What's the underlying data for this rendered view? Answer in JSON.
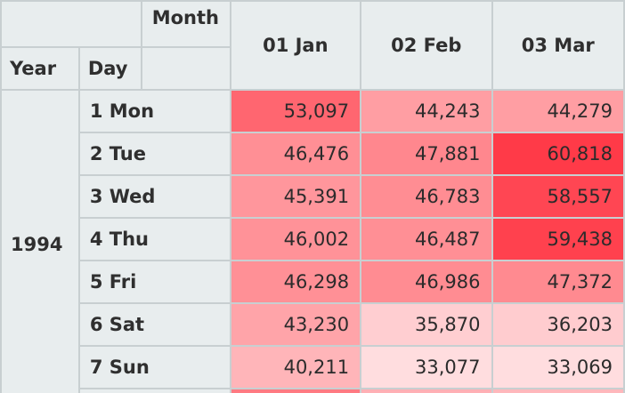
{
  "header": {
    "month_label": "Month",
    "year_label": "Year",
    "day_label": "Day",
    "columns": [
      "01 Jan",
      "02 Feb",
      "03 Mar"
    ]
  },
  "year": "1994",
  "rows": [
    {
      "day": "1 Mon",
      "values": [
        "53,097",
        "44,243",
        "44,279"
      ],
      "colors": [
        "#ff6670",
        "#ff9ea3",
        "#ff9ea3"
      ]
    },
    {
      "day": "2 Tue",
      "values": [
        "46,476",
        "47,881",
        "60,818"
      ],
      "colors": [
        "#ff8f95",
        "#ff878e",
        "#ff3a48"
      ]
    },
    {
      "day": "3 Wed",
      "values": [
        "45,391",
        "46,783",
        "58,557"
      ],
      "colors": [
        "#ff969c",
        "#ff8d93",
        "#ff4653"
      ]
    },
    {
      "day": "4 Thu",
      "values": [
        "46,002",
        "46,487",
        "59,438"
      ],
      "colors": [
        "#ff9298",
        "#ff8f95",
        "#ff414e"
      ]
    },
    {
      "day": "5 Fri",
      "values": [
        "46,298",
        "46,986",
        "47,372"
      ],
      "colors": [
        "#ff9096",
        "#ff8c92",
        "#ff8a90"
      ]
    },
    {
      "day": "6 Sat",
      "values": [
        "43,230",
        "35,870",
        "36,203"
      ],
      "colors": [
        "#ffa4a9",
        "#ffced1",
        "#ffcccf"
      ]
    },
    {
      "day": "7 Sun",
      "values": [
        "40,211",
        "33,077",
        "33,069"
      ],
      "colors": [
        "#ffb5b9",
        "#ffdddf",
        "#ffdddf"
      ]
    }
  ]
}
